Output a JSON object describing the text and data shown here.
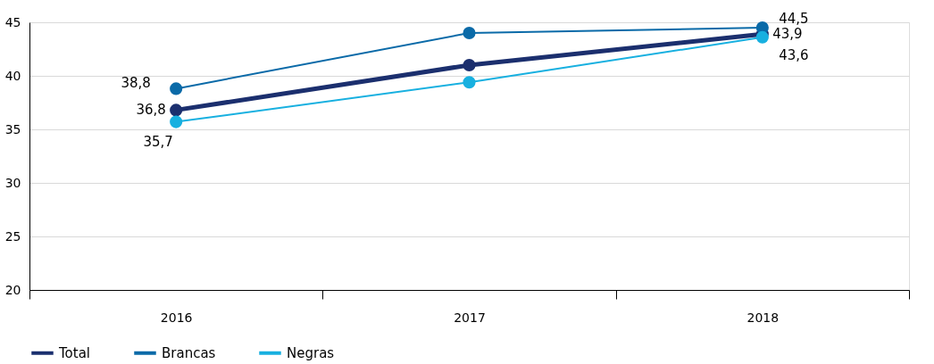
{
  "chart_data": {
    "type": "line",
    "categories": [
      "2016",
      "2017",
      "2018"
    ],
    "series": [
      {
        "name": "Total",
        "color": "#1b2f6e",
        "values": [
          36.8,
          41.0,
          43.9
        ],
        "value_labels": [
          "36,8",
          null,
          "43,9"
        ]
      },
      {
        "name": "Brancas",
        "color": "#0a6aa8",
        "values": [
          38.8,
          44.0,
          44.5
        ],
        "value_labels": [
          "38,8",
          null,
          "44,5"
        ]
      },
      {
        "name": "Negras",
        "color": "#18b0e0",
        "values": [
          35.7,
          39.4,
          43.6
        ],
        "value_labels": [
          "35,7",
          null,
          "43,6"
        ]
      }
    ],
    "ylim": [
      20,
      45
    ],
    "yticks": [
      20,
      25,
      30,
      35,
      40,
      45
    ],
    "grid": "y",
    "legend": "bottom",
    "marker": "circle",
    "line_style": "solid"
  }
}
